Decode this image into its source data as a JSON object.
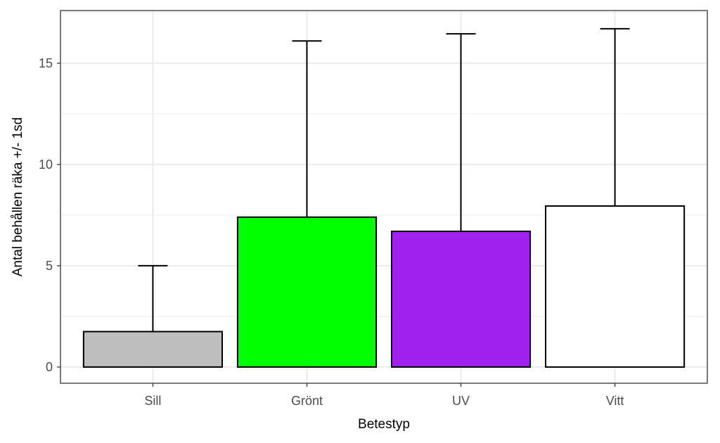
{
  "chart_data": {
    "type": "bar",
    "title": "",
    "xlabel": "Betestyp",
    "ylabel": "Antal behållen räka +/- 1sd",
    "categories": [
      "Sill",
      "Grönt",
      "UV",
      "Vitt"
    ],
    "values": [
      1.75,
      7.4,
      6.7,
      7.95
    ],
    "error_upper": [
      5.0,
      16.1,
      16.45,
      16.7
    ],
    "bar_colors": [
      "#bebebe",
      "#00ff00",
      "#a020f0",
      "#ffffff"
    ],
    "ylim": [
      -0.8,
      17.6
    ],
    "yticks": [
      0,
      5,
      10,
      15
    ],
    "ytick_labels": [
      "0",
      "5",
      "10",
      "15"
    ],
    "grid": true
  }
}
